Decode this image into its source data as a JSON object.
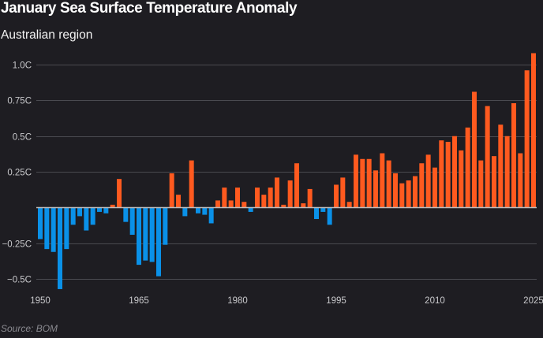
{
  "chart_data": {
    "type": "bar",
    "title": "January Sea Surface Temperature Anomaly",
    "subtitle": "Australian region",
    "source": "Source: BOM",
    "xlabel": "",
    "ylabel": "",
    "ylim": [
      -0.6,
      1.1
    ],
    "yticks": [
      1.0,
      0.75,
      0.5,
      0.25,
      -0.25,
      -0.5
    ],
    "ytick_labels": [
      "1.0C",
      "0.75C",
      "0.5C",
      "0.25C",
      "−0.25C",
      "−0.5C"
    ],
    "xticks": [
      1950,
      1965,
      1980,
      1995,
      2010,
      2025
    ],
    "xtick_labels": [
      "1950",
      "1965",
      "1980",
      "1995",
      "2010",
      "2025"
    ],
    "grid": true,
    "legend": "none",
    "colors": {
      "positive": "#ff5a1f",
      "negative": "#0a91e8"
    },
    "categories": [
      1950,
      1951,
      1952,
      1953,
      1954,
      1955,
      1956,
      1957,
      1958,
      1959,
      1960,
      1961,
      1962,
      1963,
      1964,
      1965,
      1966,
      1967,
      1968,
      1969,
      1970,
      1971,
      1972,
      1973,
      1974,
      1975,
      1976,
      1977,
      1978,
      1979,
      1980,
      1981,
      1982,
      1983,
      1984,
      1985,
      1986,
      1987,
      1988,
      1989,
      1990,
      1991,
      1992,
      1993,
      1994,
      1995,
      1996,
      1997,
      1998,
      1999,
      2000,
      2001,
      2002,
      2003,
      2004,
      2005,
      2006,
      2007,
      2008,
      2009,
      2010,
      2011,
      2012,
      2013,
      2014,
      2015,
      2016,
      2017,
      2018,
      2019,
      2020,
      2021,
      2022,
      2023,
      2024,
      2025
    ],
    "values": [
      -0.22,
      -0.29,
      -0.31,
      -0.57,
      -0.29,
      -0.12,
      -0.06,
      -0.16,
      -0.12,
      -0.03,
      -0.04,
      0.02,
      0.2,
      -0.1,
      -0.19,
      -0.4,
      -0.37,
      -0.38,
      -0.48,
      -0.26,
      0.24,
      0.09,
      -0.06,
      0.33,
      -0.04,
      -0.05,
      -0.11,
      0.05,
      0.14,
      0.05,
      0.14,
      0.04,
      -0.03,
      0.14,
      0.09,
      0.14,
      0.21,
      0.02,
      0.19,
      0.31,
      0.03,
      0.13,
      -0.08,
      -0.03,
      -0.12,
      0.16,
      0.21,
      0.04,
      0.37,
      0.34,
      0.34,
      0.26,
      0.38,
      0.33,
      0.24,
      0.17,
      0.19,
      0.22,
      0.31,
      0.37,
      0.28,
      0.47,
      0.46,
      0.5,
      0.4,
      0.56,
      0.81,
      0.33,
      0.71,
      0.36,
      0.58,
      0.5,
      0.73,
      0.38,
      0.96,
      1.08
    ]
  }
}
